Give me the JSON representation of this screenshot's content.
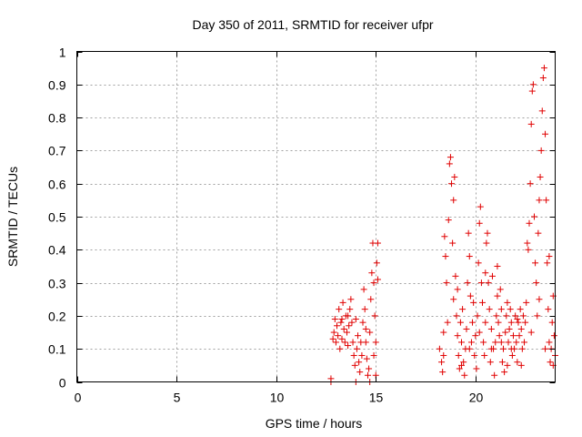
{
  "chart_data": {
    "type": "scatter",
    "title": "Day 350 of 2011, SRMTID for receiver ufpr",
    "xlabel": "GPS time / hours",
    "ylabel": "SRMTID / TECUs",
    "xlim": [
      0,
      24
    ],
    "ylim": [
      0,
      1
    ],
    "xticks": [
      0,
      5,
      10,
      15,
      20
    ],
    "xtick_labels": [
      "0",
      "5",
      "10",
      "15",
      "20"
    ],
    "yticks": [
      0,
      0.1,
      0.2,
      0.3,
      0.4,
      0.5,
      0.6,
      0.7,
      0.8,
      0.9,
      1
    ],
    "ytick_labels": [
      "0",
      "0.1",
      "0.2",
      "0.3",
      "0.4",
      "0.5",
      "0.6",
      "0.7",
      "0.8",
      "0.9",
      "1"
    ],
    "grid": true,
    "marker": "+",
    "series": [
      {
        "name": "SRMTID",
        "color": "#e00000",
        "points": [
          [
            12.75,
            0.0
          ],
          [
            12.75,
            0.01
          ],
          [
            12.85,
            0.13
          ],
          [
            12.9,
            0.15
          ],
          [
            12.95,
            0.19
          ],
          [
            13.0,
            0.12
          ],
          [
            13.05,
            0.17
          ],
          [
            13.1,
            0.14
          ],
          [
            13.15,
            0.22
          ],
          [
            13.2,
            0.1
          ],
          [
            13.25,
            0.18
          ],
          [
            13.3,
            0.13
          ],
          [
            13.35,
            0.24
          ],
          [
            13.4,
            0.16
          ],
          [
            13.45,
            0.12
          ],
          [
            13.5,
            0.2
          ],
          [
            13.55,
            0.15
          ],
          [
            13.6,
            0.11
          ],
          [
            13.65,
            0.17
          ],
          [
            13.7,
            0.22
          ],
          [
            13.75,
            0.25
          ],
          [
            13.8,
            0.18
          ],
          [
            13.85,
            0.12
          ],
          [
            13.9,
            0.08
          ],
          [
            13.95,
            0.05
          ],
          [
            14.0,
            0.0
          ],
          [
            14.05,
            0.1
          ],
          [
            14.1,
            0.14
          ],
          [
            14.15,
            0.06
          ],
          [
            14.2,
            0.03
          ],
          [
            14.25,
            0.12
          ],
          [
            14.3,
            0.08
          ],
          [
            14.35,
            0.18
          ],
          [
            14.4,
            0.28
          ],
          [
            14.45,
            0.22
          ],
          [
            14.5,
            0.12
          ],
          [
            14.55,
            0.07
          ],
          [
            14.6,
            0.02
          ],
          [
            14.65,
            0.04
          ],
          [
            14.7,
            0.15
          ],
          [
            14.75,
            0.25
          ],
          [
            14.8,
            0.33
          ],
          [
            14.85,
            0.42
          ],
          [
            14.9,
            0.3
          ],
          [
            14.95,
            0.2
          ],
          [
            15.0,
            0.12
          ],
          [
            15.05,
            0.36
          ],
          [
            15.1,
            0.42
          ],
          [
            15.1,
            0.31
          ],
          [
            14.0,
            0.19
          ],
          [
            13.3,
            0.19
          ],
          [
            13.6,
            0.2
          ],
          [
            14.5,
            0.16
          ],
          [
            14.7,
            0.0
          ],
          [
            14.9,
            0.08
          ],
          [
            15.0,
            0.02
          ],
          [
            18.2,
            0.1
          ],
          [
            18.3,
            0.06
          ],
          [
            18.35,
            0.03
          ],
          [
            18.4,
            0.08
          ],
          [
            18.45,
            0.44
          ],
          [
            18.5,
            0.38
          ],
          [
            18.55,
            0.3
          ],
          [
            18.6,
            0.18
          ],
          [
            18.65,
            0.49
          ],
          [
            18.7,
            0.66
          ],
          [
            18.75,
            0.68
          ],
          [
            18.8,
            0.6
          ],
          [
            18.85,
            0.42
          ],
          [
            18.9,
            0.55
          ],
          [
            18.95,
            0.62
          ],
          [
            19.0,
            0.32
          ],
          [
            19.05,
            0.2
          ],
          [
            19.1,
            0.14
          ],
          [
            19.15,
            0.08
          ],
          [
            19.2,
            0.04
          ],
          [
            19.25,
            0.18
          ],
          [
            19.3,
            0.12
          ],
          [
            19.35,
            0.22
          ],
          [
            19.4,
            0.06
          ],
          [
            19.45,
            0.02
          ],
          [
            19.5,
            0.1
          ],
          [
            19.55,
            0.16
          ],
          [
            19.6,
            0.3
          ],
          [
            19.65,
            0.45
          ],
          [
            19.7,
            0.38
          ],
          [
            19.75,
            0.26
          ],
          [
            19.8,
            0.12
          ],
          [
            19.85,
            0.18
          ],
          [
            19.9,
            0.24
          ],
          [
            19.95,
            0.08
          ],
          [
            20.0,
            0.14
          ],
          [
            20.05,
            0.04
          ],
          [
            20.1,
            0.2
          ],
          [
            20.15,
            0.36
          ],
          [
            20.2,
            0.48
          ],
          [
            20.25,
            0.53
          ],
          [
            20.3,
            0.3
          ],
          [
            20.35,
            0.24
          ],
          [
            20.4,
            0.12
          ],
          [
            20.45,
            0.08
          ],
          [
            20.5,
            0.18
          ],
          [
            20.55,
            0.42
          ],
          [
            20.6,
            0.45
          ],
          [
            20.65,
            0.3
          ],
          [
            20.7,
            0.22
          ],
          [
            20.75,
            0.06
          ],
          [
            20.8,
            0.16
          ],
          [
            20.85,
            0.32
          ],
          [
            20.9,
            0.1
          ],
          [
            20.95,
            0.02
          ],
          [
            21.0,
            0.12
          ],
          [
            21.05,
            0.2
          ],
          [
            21.1,
            0.26
          ],
          [
            21.15,
            0.18
          ],
          [
            21.2,
            0.14
          ],
          [
            21.25,
            0.28
          ],
          [
            21.3,
            0.22
          ],
          [
            21.35,
            0.06
          ],
          [
            21.4,
            0.1
          ],
          [
            21.45,
            0.03
          ],
          [
            21.5,
            0.15
          ],
          [
            21.55,
            0.2
          ],
          [
            21.6,
            0.24
          ],
          [
            21.65,
            0.12
          ],
          [
            21.7,
            0.16
          ],
          [
            21.75,
            0.22
          ],
          [
            21.8,
            0.18
          ],
          [
            21.85,
            0.08
          ],
          [
            21.9,
            0.14
          ],
          [
            21.95,
            0.1
          ],
          [
            22.0,
            0.2
          ],
          [
            22.05,
            0.12
          ],
          [
            22.1,
            0.06
          ],
          [
            22.15,
            0.18
          ],
          [
            22.2,
            0.14
          ],
          [
            22.25,
            0.22
          ],
          [
            22.3,
            0.16
          ],
          [
            22.35,
            0.1
          ],
          [
            22.4,
            0.2
          ],
          [
            22.45,
            0.12
          ],
          [
            22.5,
            0.18
          ],
          [
            22.55,
            0.24
          ],
          [
            22.6,
            0.42
          ],
          [
            22.65,
            0.4
          ],
          [
            22.7,
            0.48
          ],
          [
            22.75,
            0.6
          ],
          [
            22.8,
            0.78
          ],
          [
            22.85,
            0.88
          ],
          [
            22.9,
            0.9
          ],
          [
            22.95,
            0.5
          ],
          [
            23.0,
            0.36
          ],
          [
            23.05,
            0.3
          ],
          [
            23.1,
            0.2
          ],
          [
            23.15,
            0.45
          ],
          [
            23.2,
            0.55
          ],
          [
            23.25,
            0.62
          ],
          [
            23.3,
            0.7
          ],
          [
            23.35,
            0.82
          ],
          [
            23.4,
            0.92
          ],
          [
            23.45,
            0.95
          ],
          [
            23.5,
            0.75
          ],
          [
            23.55,
            0.55
          ],
          [
            23.6,
            0.36
          ],
          [
            23.65,
            0.22
          ],
          [
            23.7,
            0.12
          ],
          [
            23.75,
            0.06
          ],
          [
            23.8,
            0.1
          ],
          [
            23.85,
            0.18
          ],
          [
            23.9,
            0.26
          ],
          [
            23.95,
            0.14
          ],
          [
            24.0,
            0.08
          ],
          [
            18.4,
            0.15
          ],
          [
            18.9,
            0.25
          ],
          [
            19.3,
            0.05
          ],
          [
            19.7,
            0.1
          ],
          [
            20.2,
            0.15
          ],
          [
            20.8,
            0.1
          ],
          [
            21.3,
            0.12
          ],
          [
            21.8,
            0.1
          ],
          [
            22.3,
            0.05
          ],
          [
            22.8,
            0.15
          ],
          [
            23.5,
            0.1
          ],
          [
            23.7,
            0.38
          ],
          [
            23.9,
            0.05
          ],
          [
            19.1,
            0.28
          ],
          [
            20.5,
            0.33
          ],
          [
            21.1,
            0.35
          ],
          [
            21.6,
            0.05
          ],
          [
            22.1,
            0.19
          ],
          [
            23.2,
            0.25
          ]
        ]
      }
    ]
  }
}
